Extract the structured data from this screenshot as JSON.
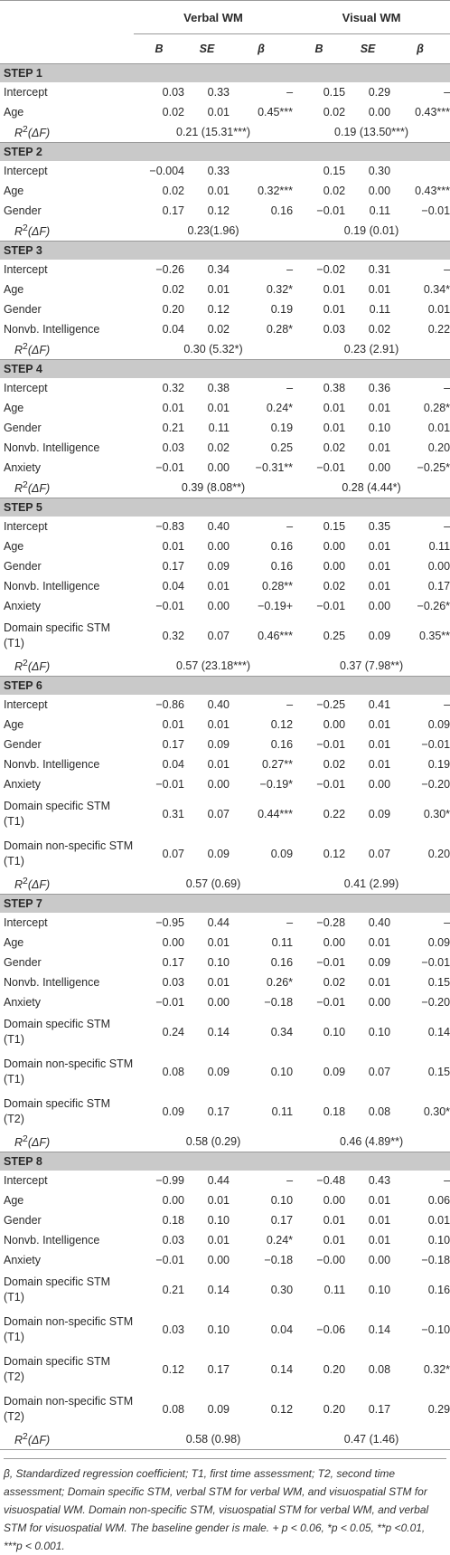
{
  "header": {
    "verbal": "Verbal WM",
    "visual": "Visual WM",
    "cols": [
      "B",
      "SE",
      "β",
      "B",
      "SE",
      "β"
    ]
  },
  "steps": [
    {
      "title": "STEP 1",
      "rows": [
        {
          "label": "Intercept",
          "v": [
            "0.03",
            "0.33",
            "–",
            "0.15",
            "0.29",
            "–"
          ]
        },
        {
          "label": "Age",
          "v": [
            "0.02",
            "0.01",
            "0.45***",
            "0.02",
            "0.00",
            "0.43***"
          ]
        }
      ],
      "r2": {
        "verbal": "0.21 (15.31***)",
        "visual": "0.19 (13.50***)"
      }
    },
    {
      "title": "STEP 2",
      "rows": [
        {
          "label": "Intercept",
          "v": [
            "−0.004",
            "0.33",
            "",
            "0.15",
            "0.30",
            ""
          ]
        },
        {
          "label": "Age",
          "v": [
            "0.02",
            "0.01",
            "0.32***",
            "0.02",
            "0.00",
            "0.43***"
          ]
        },
        {
          "label": "Gender",
          "v": [
            "0.17",
            "0.12",
            "0.16",
            "−0.01",
            "0.11",
            "−0.01"
          ]
        }
      ],
      "r2": {
        "verbal": "0.23(1.96)",
        "visual": "0.19 (0.01)"
      }
    },
    {
      "title": "STEP 3",
      "rows": [
        {
          "label": "Intercept",
          "v": [
            "−0.26",
            "0.34",
            "–",
            "−0.02",
            "0.31",
            "–"
          ]
        },
        {
          "label": "Age",
          "v": [
            "0.02",
            "0.01",
            "0.32*",
            "0.01",
            "0.01",
            "0.34*"
          ]
        },
        {
          "label": "Gender",
          "v": [
            "0.20",
            "0.12",
            "0.19",
            "0.01",
            "0.11",
            "0.01"
          ]
        },
        {
          "label": "Nonvb. Intelligence",
          "v": [
            "0.04",
            "0.02",
            "0.28*",
            "0.03",
            "0.02",
            "0.22"
          ]
        }
      ],
      "r2": {
        "verbal": "0.30 (5.32*)",
        "visual": "0.23 (2.91)"
      }
    },
    {
      "title": "STEP 4",
      "rows": [
        {
          "label": "Intercept",
          "v": [
            "0.32",
            "0.38",
            "–",
            "0.38",
            "0.36",
            "–"
          ]
        },
        {
          "label": "Age",
          "v": [
            "0.01",
            "0.01",
            "0.24*",
            "0.01",
            "0.01",
            "0.28*"
          ]
        },
        {
          "label": "Gender",
          "v": [
            "0.21",
            "0.11",
            "0.19",
            "0.01",
            "0.10",
            "0.01"
          ]
        },
        {
          "label": "Nonvb. Intelligence",
          "v": [
            "0.03",
            "0.02",
            "0.25",
            "0.02",
            "0.01",
            "0.20"
          ]
        },
        {
          "label": "Anxiety",
          "v": [
            "−0.01",
            "0.00",
            "−0.31**",
            "−0.01",
            "0.00",
            "−0.25*"
          ]
        }
      ],
      "r2": {
        "verbal": "0.39 (8.08**)",
        "visual": "0.28 (4.44*)"
      }
    },
    {
      "title": "STEP 5",
      "rows": [
        {
          "label": "Intercept",
          "v": [
            "−0.83",
            "0.40",
            "–",
            "0.15",
            "0.35",
            "–"
          ]
        },
        {
          "label": "Age",
          "v": [
            "0.01",
            "0.00",
            "0.16",
            "0.00",
            "0.01",
            "0.11"
          ]
        },
        {
          "label": "Gender",
          "v": [
            "0.17",
            "0.09",
            "0.16",
            "0.00",
            "0.01",
            "0.00"
          ]
        },
        {
          "label": "Nonvb. Intelligence",
          "v": [
            "0.04",
            "0.01",
            "0.28**",
            "0.02",
            "0.01",
            "0.17"
          ]
        },
        {
          "label": "Anxiety",
          "v": [
            "−0.01",
            "0.00",
            "−0.19+",
            "−0.01",
            "0.00",
            "−0.26*"
          ]
        },
        {
          "label": "Domain specific STM (T1)",
          "tall": true,
          "v": [
            "0.32",
            "0.07",
            "0.46***",
            "0.25",
            "0.09",
            "0.35**"
          ]
        }
      ],
      "r2": {
        "verbal": "0.57 (23.18***)",
        "visual": "0.37 (7.98**)"
      }
    },
    {
      "title": "STEP 6",
      "rows": [
        {
          "label": "Intercept",
          "v": [
            "−0.86",
            "0.40",
            "–",
            "−0.25",
            "0.41",
            "–"
          ]
        },
        {
          "label": "Age",
          "v": [
            "0.01",
            "0.01",
            "0.12",
            "0.00",
            "0.01",
            "0.09"
          ]
        },
        {
          "label": "Gender",
          "v": [
            "0.17",
            "0.09",
            "0.16",
            "−0.01",
            "0.01",
            "−0.01"
          ]
        },
        {
          "label": "Nonvb. Intelligence",
          "v": [
            "0.04",
            "0.01",
            "0.27**",
            "0.02",
            "0.01",
            "0.19"
          ]
        },
        {
          "label": "Anxiety",
          "v": [
            "−0.01",
            "0.00",
            "−0.19*",
            "−0.01",
            "0.00",
            "−0.20"
          ]
        },
        {
          "label": "Domain specific STM (T1)",
          "tall": true,
          "v": [
            "0.31",
            "0.07",
            "0.44***",
            "0.22",
            "0.09",
            "0.30*"
          ]
        },
        {
          "label": "Domain non-specific STM (T1)",
          "tall": true,
          "v": [
            "0.07",
            "0.09",
            "0.09",
            "0.12",
            "0.07",
            "0.20"
          ]
        }
      ],
      "r2": {
        "verbal": "0.57 (0.69)",
        "visual": "0.41 (2.99)"
      }
    },
    {
      "title": "STEP 7",
      "rows": [
        {
          "label": "Intercept",
          "v": [
            "−0.95",
            "0.44",
            "–",
            "−0.28",
            "0.40",
            "–"
          ]
        },
        {
          "label": "Age",
          "v": [
            "0.00",
            "0.01",
            "0.11",
            "0.00",
            "0.01",
            "0.09"
          ]
        },
        {
          "label": "Gender",
          "v": [
            "0.17",
            "0.10",
            "0.16",
            "−0.01",
            "0.09",
            "−0.01"
          ]
        },
        {
          "label": "Nonvb. Intelligence",
          "v": [
            "0.03",
            "0.01",
            "0.26*",
            "0.02",
            "0.01",
            "0.15"
          ]
        },
        {
          "label": "Anxiety",
          "v": [
            "−0.01",
            "0.00",
            "−0.18",
            "−0.01",
            "0.00",
            "−0.20"
          ]
        },
        {
          "label": "Domain specific STM (T1)",
          "tall": true,
          "v": [
            "0.24",
            "0.14",
            "0.34",
            "0.10",
            "0.10",
            "0.14"
          ]
        },
        {
          "label": "Domain non-specific STM (T1)",
          "tall": true,
          "v": [
            "0.08",
            "0.09",
            "0.10",
            "0.09",
            "0.07",
            "0.15"
          ]
        },
        {
          "label": "Domain specific STM (T2)",
          "tall": true,
          "v": [
            "0.09",
            "0.17",
            "0.11",
            "0.18",
            "0.08",
            "0.30*"
          ]
        }
      ],
      "r2": {
        "verbal": "0.58 (0.29)",
        "visual": "0.46 (4.89**)"
      }
    },
    {
      "title": "STEP 8",
      "rows": [
        {
          "label": "Intercept",
          "v": [
            "−0.99",
            "0.44",
            "–",
            "−0.48",
            "0.43",
            "–"
          ]
        },
        {
          "label": "Age",
          "v": [
            "0.00",
            "0.01",
            "0.10",
            "0.00",
            "0.01",
            "0.06"
          ]
        },
        {
          "label": "Gender",
          "v": [
            "0.18",
            "0.10",
            "0.17",
            "0.01",
            "0.01",
            "0.01"
          ]
        },
        {
          "label": "Nonvb. Intelligence",
          "v": [
            "0.03",
            "0.01",
            "0.24*",
            "0.01",
            "0.01",
            "0.10"
          ]
        },
        {
          "label": "Anxiety",
          "v": [
            "−0.01",
            "0.00",
            "−0.18",
            "−0.00",
            "0.00",
            "−0.18"
          ]
        },
        {
          "label": "Domain specific STM (T1)",
          "tall": true,
          "v": [
            "0.21",
            "0.14",
            "0.30",
            "0.11",
            "0.10",
            "0.16"
          ]
        },
        {
          "label": "Domain non-specific STM (T1)",
          "tall": true,
          "v": [
            "0.03",
            "0.10",
            "0.04",
            "−0.06",
            "0.14",
            "−0.10"
          ]
        },
        {
          "label": "Domain specific STM (T2)",
          "tall": true,
          "v": [
            "0.12",
            "0.17",
            "0.14",
            "0.20",
            "0.08",
            "0.32*"
          ]
        },
        {
          "label": "Domain non-specific STM (T2)",
          "tall": true,
          "v": [
            "0.08",
            "0.09",
            "0.12",
            "0.20",
            "0.17",
            "0.29"
          ]
        }
      ],
      "r2": {
        "verbal": "0.58 (0.98)",
        "visual": "0.47 (1.46)"
      }
    }
  ],
  "r2_label": {
    "r": "R",
    "sup": "2",
    "rest": "(ΔF)"
  },
  "footnote": "β, Standardized regression coefficient; T1, first time assessment; T2, second time assessment; Domain specific STM, verbal STM for verbal WM, and visuospatial STM for visuospatial WM. Domain non-specific STM, visuospatial STM for verbal WM, and verbal STM for visuospatial WM. The baseline gender is male. + p < 0.06, *p < 0.05, **p <0.01, ***p < 0.001."
}
